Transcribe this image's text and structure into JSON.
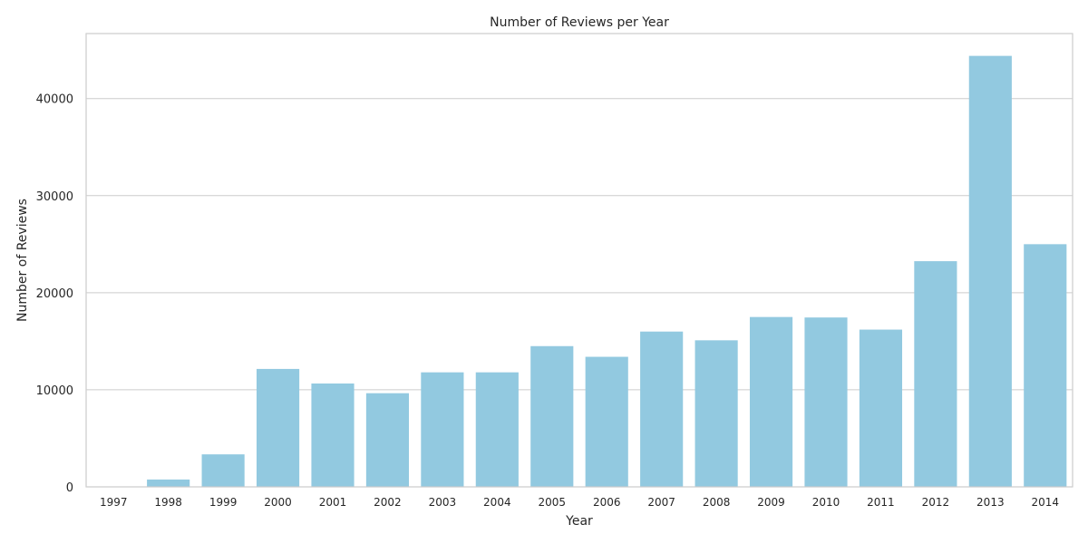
{
  "chart_data": {
    "type": "bar",
    "title": "Number of Reviews per Year",
    "xlabel": "Year",
    "ylabel": "Number of Reviews",
    "categories": [
      "1997",
      "1998",
      "1999",
      "2000",
      "2001",
      "2002",
      "2003",
      "2004",
      "2005",
      "2006",
      "2007",
      "2008",
      "2009",
      "2010",
      "2011",
      "2012",
      "2013",
      "2014"
    ],
    "values": [
      10,
      760,
      3350,
      12150,
      10650,
      9650,
      11800,
      11800,
      14500,
      13400,
      16000,
      15100,
      17500,
      17450,
      16200,
      23250,
      44400,
      25000
    ],
    "ylim": [
      0,
      46700
    ],
    "yticks": [
      0,
      10000,
      20000,
      30000,
      40000
    ],
    "grid": true,
    "bar_color": "#92c9e0",
    "grid_color": "#cccccc",
    "text_color": "#262626"
  }
}
